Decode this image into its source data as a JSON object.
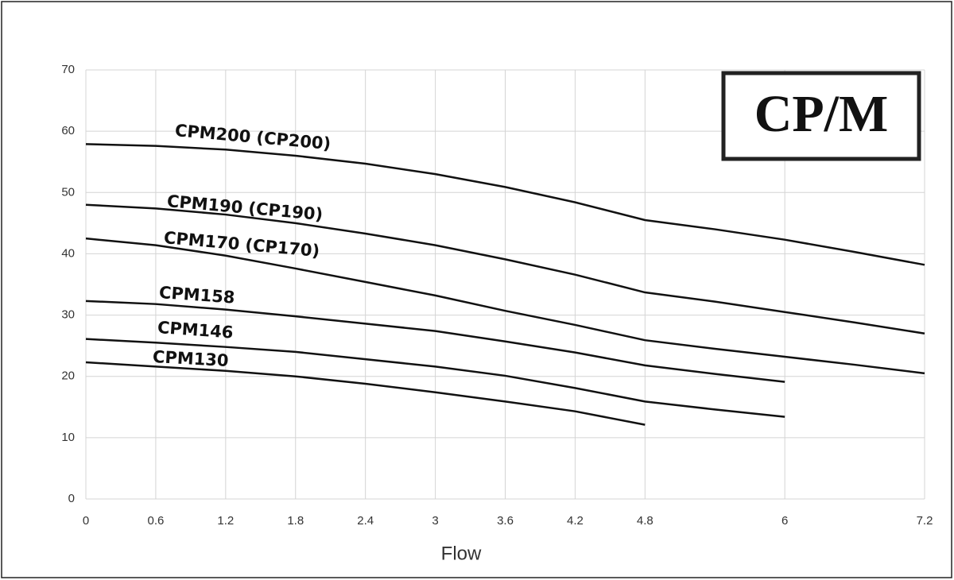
{
  "chart_data": {
    "type": "line",
    "annotation": "CP/M",
    "x_label": "Flow",
    "x": [
      0,
      0.6,
      1.2,
      1.8,
      2.4,
      3,
      3.6,
      4.2,
      4.8,
      5.4,
      6,
      6.6,
      7.2
    ],
    "series": [
      {
        "name": "CPM200 (CP200)",
        "color": "#111111",
        "values": [
          57.9,
          57.6,
          57.0,
          56.0,
          54.7,
          53.0,
          50.9,
          48.4,
          45.5,
          44.0,
          42.3,
          40.3,
          38.2
        ]
      },
      {
        "name": "CPM190 (CP190)",
        "color": "#111111",
        "values": [
          48.0,
          47.4,
          46.4,
          45.0,
          43.3,
          41.4,
          39.1,
          36.6,
          33.7,
          32.2,
          30.5,
          28.8,
          27.0
        ]
      },
      {
        "name": "CPM170 (CP170)",
        "color": "#111111",
        "values": [
          42.5,
          41.4,
          39.7,
          37.6,
          35.4,
          33.2,
          30.7,
          28.4,
          25.9,
          24.5,
          23.2,
          21.9,
          20.5
        ]
      },
      {
        "name": "CPM158",
        "color": "#111111",
        "values": [
          32.3,
          31.8,
          30.9,
          29.8,
          28.6,
          27.4,
          25.7,
          23.9,
          21.8,
          20.4,
          19.1,
          null,
          null
        ]
      },
      {
        "name": "CPM146",
        "color": "#111111",
        "values": [
          26.1,
          25.5,
          24.8,
          24.0,
          22.8,
          21.6,
          20.1,
          18.1,
          15.9,
          14.6,
          13.4,
          null,
          null
        ]
      },
      {
        "name": "CPM130",
        "color": "#111111",
        "values": [
          22.3,
          21.6,
          20.9,
          20.0,
          18.8,
          17.4,
          15.9,
          14.3,
          12.1,
          null,
          null,
          null,
          null
        ]
      }
    ],
    "xlim": [
      0,
      7.2
    ],
    "xticks": [
      0,
      0.6,
      1.2,
      1.8,
      2.4,
      3,
      3.6,
      4.2,
      4.8,
      6,
      7.2
    ],
    "ylim": [
      0,
      70
    ],
    "yticks": [
      0,
      10,
      20,
      30,
      40,
      50,
      60,
      70
    ],
    "grid": true
  }
}
